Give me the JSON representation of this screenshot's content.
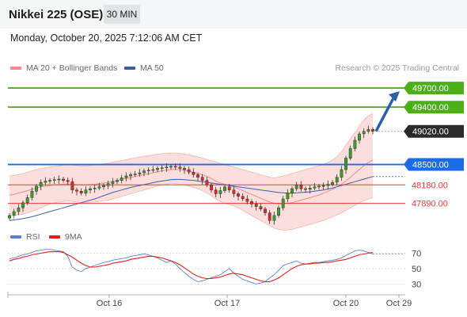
{
  "header": {
    "title": "Nikkei 225 (OSE)",
    "timeframe": "30 MIN",
    "datetime": "Monday, October 20, 2025 7:12:06 AM CET"
  },
  "legend_main": [
    {
      "label": "MA 20 + Bollinger Bands",
      "color": "#f08a8a"
    },
    {
      "label": "MA 50",
      "color": "#3b5ea8"
    }
  ],
  "copyright": "Research © 2025 Trading Central",
  "legend_rsi": [
    {
      "label": "RSI",
      "color": "#5b7fd6"
    },
    {
      "label": "9MA",
      "color": "#e02020"
    }
  ],
  "chart_data": {
    "type": "candlestick",
    "price_ylim": [
      47350,
      49900
    ],
    "x_ticks": [
      "Oct 16",
      "Oct 17",
      "Oct 20",
      "Oct 29"
    ],
    "levels": [
      {
        "value": 49700.0,
        "label": "49700.00",
        "kind": "resistance",
        "color": "#4caf1a"
      },
      {
        "value": 49400.0,
        "label": "49400.00",
        "kind": "resistance",
        "color": "#4caf1a"
      },
      {
        "value": 49020.0,
        "label": "49020.00",
        "kind": "last",
        "color": "#2a2a2a"
      },
      {
        "value": 48500.0,
        "label": "48500.00",
        "kind": "pivot",
        "color": "#1e6be6"
      },
      {
        "value": 48180.0,
        "label": "48180.00",
        "kind": "support",
        "color": "#e53935"
      },
      {
        "value": 47890.0,
        "label": "47890.00",
        "kind": "support",
        "color": "#e53935"
      }
    ],
    "close": [
      47700,
      47760,
      47820,
      47900,
      47980,
      48080,
      48160,
      48220,
      48240,
      48250,
      48260,
      48270,
      48250,
      48230,
      48100,
      48080,
      48050,
      48100,
      48120,
      48130,
      48150,
      48170,
      48200,
      48230,
      48250,
      48290,
      48320,
      48340,
      48350,
      48370,
      48400,
      48410,
      48420,
      48440,
      48450,
      48460,
      48470,
      48460,
      48440,
      48420,
      48380,
      48340,
      48300,
      48250,
      48180,
      48100,
      48040,
      48090,
      48150,
      48100,
      48040,
      48000,
      47960,
      47920,
      47880,
      47840,
      47800,
      47740,
      47620,
      47700,
      47820,
      47960,
      48050,
      48120,
      48180,
      48120,
      48110,
      48130,
      48150,
      48160,
      48170,
      48190,
      48220,
      48300,
      48420,
      48600,
      48750,
      48880,
      48980,
      49020,
      49050,
      49020
    ],
    "ma20": [
      48020,
      48030,
      48050,
      48070,
      48090,
      48110,
      48130,
      48150,
      48160,
      48170,
      48180,
      48185,
      48190,
      48195,
      48190,
      48185,
      48180,
      48180,
      48185,
      48190,
      48200,
      48210,
      48220,
      48235,
      48250,
      48265,
      48280,
      48295,
      48310,
      48325,
      48340,
      48355,
      48370,
      48385,
      48400,
      48410,
      48420,
      48425,
      48420,
      48410,
      48395,
      48380,
      48360,
      48340,
      48310,
      48280,
      48240,
      48210,
      48190,
      48170,
      48150,
      48120,
      48090,
      48060,
      48030,
      48000,
      47970,
      47940,
      47910,
      47890,
      47880,
      47880,
      47890,
      47900,
      47920,
      47940,
      47960,
      47980,
      48000,
      48020,
      48050,
      48080,
      48110,
      48150,
      48190,
      48240,
      48300,
      48360,
      48420,
      48480,
      48530,
      48570
    ],
    "ma50": [
      47620,
      47630,
      47640,
      47650,
      47665,
      47680,
      47700,
      47720,
      47740,
      47760,
      47780,
      47800,
      47820,
      47840,
      47860,
      47880,
      47900,
      47920,
      47940,
      47960,
      47985,
      48010,
      48035,
      48060,
      48080,
      48100,
      48120,
      48140,
      48155,
      48170,
      48185,
      48200,
      48215,
      48230,
      48240,
      48250,
      48260,
      48265,
      48265,
      48260,
      48255,
      48250,
      48240,
      48230,
      48220,
      48210,
      48200,
      48190,
      48180,
      48170,
      48160,
      48150,
      48140,
      48130,
      48120,
      48110,
      48100,
      48090,
      48080,
      48070,
      48060,
      48055,
      48050,
      48050,
      48055,
      48060,
      48065,
      48070,
      48080,
      48090,
      48100,
      48115,
      48130,
      48150,
      48170,
      48190,
      48210,
      48230,
      48250,
      48270,
      48290,
      48310
    ],
    "bb_upper": [
      48320,
      48330,
      48340,
      48360,
      48380,
      48400,
      48420,
      48440,
      48450,
      48460,
      48470,
      48480,
      48490,
      48495,
      48490,
      48485,
      48480,
      48480,
      48485,
      48490,
      48500,
      48510,
      48520,
      48535,
      48550,
      48560,
      48575,
      48590,
      48605,
      48615,
      48630,
      48640,
      48650,
      48660,
      48670,
      48675,
      48680,
      48680,
      48675,
      48665,
      48650,
      48635,
      48620,
      48600,
      48580,
      48560,
      48540,
      48520,
      48500,
      48480,
      48460,
      48440,
      48420,
      48400,
      48380,
      48360,
      48340,
      48320,
      48300,
      48290,
      48300,
      48320,
      48340,
      48360,
      48380,
      48400,
      48420,
      48440,
      48460,
      48480,
      48500,
      48530,
      48570,
      48620,
      48700,
      48800,
      48900,
      49000,
      49100,
      49200,
      49260,
      49300
    ],
    "bb_lower": [
      47700,
      47700,
      47710,
      47720,
      47740,
      47760,
      47790,
      47820,
      47850,
      47880,
      47900,
      47910,
      47920,
      47930,
      47920,
      47910,
      47900,
      47900,
      47905,
      47910,
      47920,
      47930,
      47940,
      47960,
      47980,
      48000,
      48020,
      48040,
      48060,
      48080,
      48100,
      48120,
      48140,
      48160,
      48180,
      48190,
      48200,
      48200,
      48190,
      48180,
      48160,
      48140,
      48120,
      48090,
      48050,
      48010,
      47960,
      47920,
      47890,
      47870,
      47850,
      47820,
      47780,
      47740,
      47700,
      47660,
      47620,
      47580,
      47540,
      47500,
      47480,
      47470,
      47470,
      47480,
      47500,
      47520,
      47540,
      47560,
      47580,
      47600,
      47620,
      47650,
      47680,
      47710,
      47740,
      47780,
      47820,
      47860,
      47900,
      47930,
      47960,
      47980
    ],
    "rsi_ylim": [
      20,
      85
    ],
    "rsi_ticks": [
      70,
      50,
      30
    ],
    "rsi": [
      63,
      64,
      66,
      68,
      69,
      71,
      73,
      74,
      75,
      75,
      74,
      73,
      72,
      66,
      52,
      48,
      46,
      50,
      52,
      54,
      56,
      58,
      59,
      61,
      62,
      63,
      64,
      66,
      67,
      68,
      69,
      68,
      66,
      64,
      61,
      58,
      60,
      56,
      50,
      45,
      40,
      36,
      33,
      34,
      36,
      38,
      40,
      42,
      46,
      50,
      44,
      40,
      36,
      34,
      32,
      30,
      31,
      33,
      38,
      42,
      48,
      54,
      56,
      58,
      60,
      57,
      56,
      57,
      58,
      58,
      59,
      60,
      61,
      62,
      64,
      67,
      70,
      73,
      74,
      73,
      71,
      69
    ],
    "rsi_ma": [
      60,
      62,
      63,
      65,
      66,
      68,
      69,
      70,
      71,
      72,
      72,
      72,
      71,
      68,
      65,
      61,
      57,
      54,
      52,
      52,
      53,
      54,
      55,
      57,
      58,
      59,
      60,
      62,
      63,
      64,
      65,
      66,
      66,
      65,
      64,
      62,
      60,
      58,
      55,
      51,
      47,
      43,
      40,
      38,
      37,
      37,
      38,
      39,
      41,
      43,
      44,
      43,
      42,
      40,
      38,
      36,
      34,
      33,
      33,
      35,
      38,
      42,
      46,
      50,
      53,
      55,
      56,
      56,
      57,
      57,
      58,
      58,
      59,
      60,
      61,
      62,
      64,
      66,
      68,
      69,
      70,
      71
    ],
    "arrow": {
      "from_value": 49020,
      "to_value": 49700,
      "direction": "up"
    }
  }
}
